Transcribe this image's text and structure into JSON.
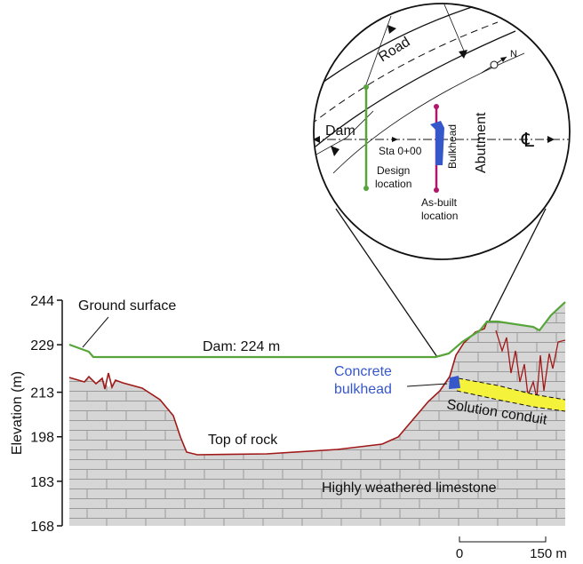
{
  "axis": {
    "label": "Elevation (m)",
    "ticks": [
      244,
      229,
      213,
      198,
      183,
      168
    ]
  },
  "section": {
    "ground_surface": "Ground surface",
    "dam": "Dam: 224 m",
    "bulkhead": [
      "Concrete",
      "bulkhead"
    ],
    "top_of_rock": "Top of rock",
    "solution_conduit": "Solution conduit",
    "limestone": "Highly weathered limestone"
  },
  "inset": {
    "road": "Road",
    "north": "N",
    "dam": "Dam",
    "station": "Sta 0+00",
    "bulkhead": "Bulkhead",
    "abutment": "Abutment",
    "centerline": "℄",
    "design_location": [
      "Design",
      "location"
    ],
    "as_built_location": [
      "As-built",
      "location"
    ]
  },
  "scale": {
    "start": "0",
    "end": "150 m"
  }
}
